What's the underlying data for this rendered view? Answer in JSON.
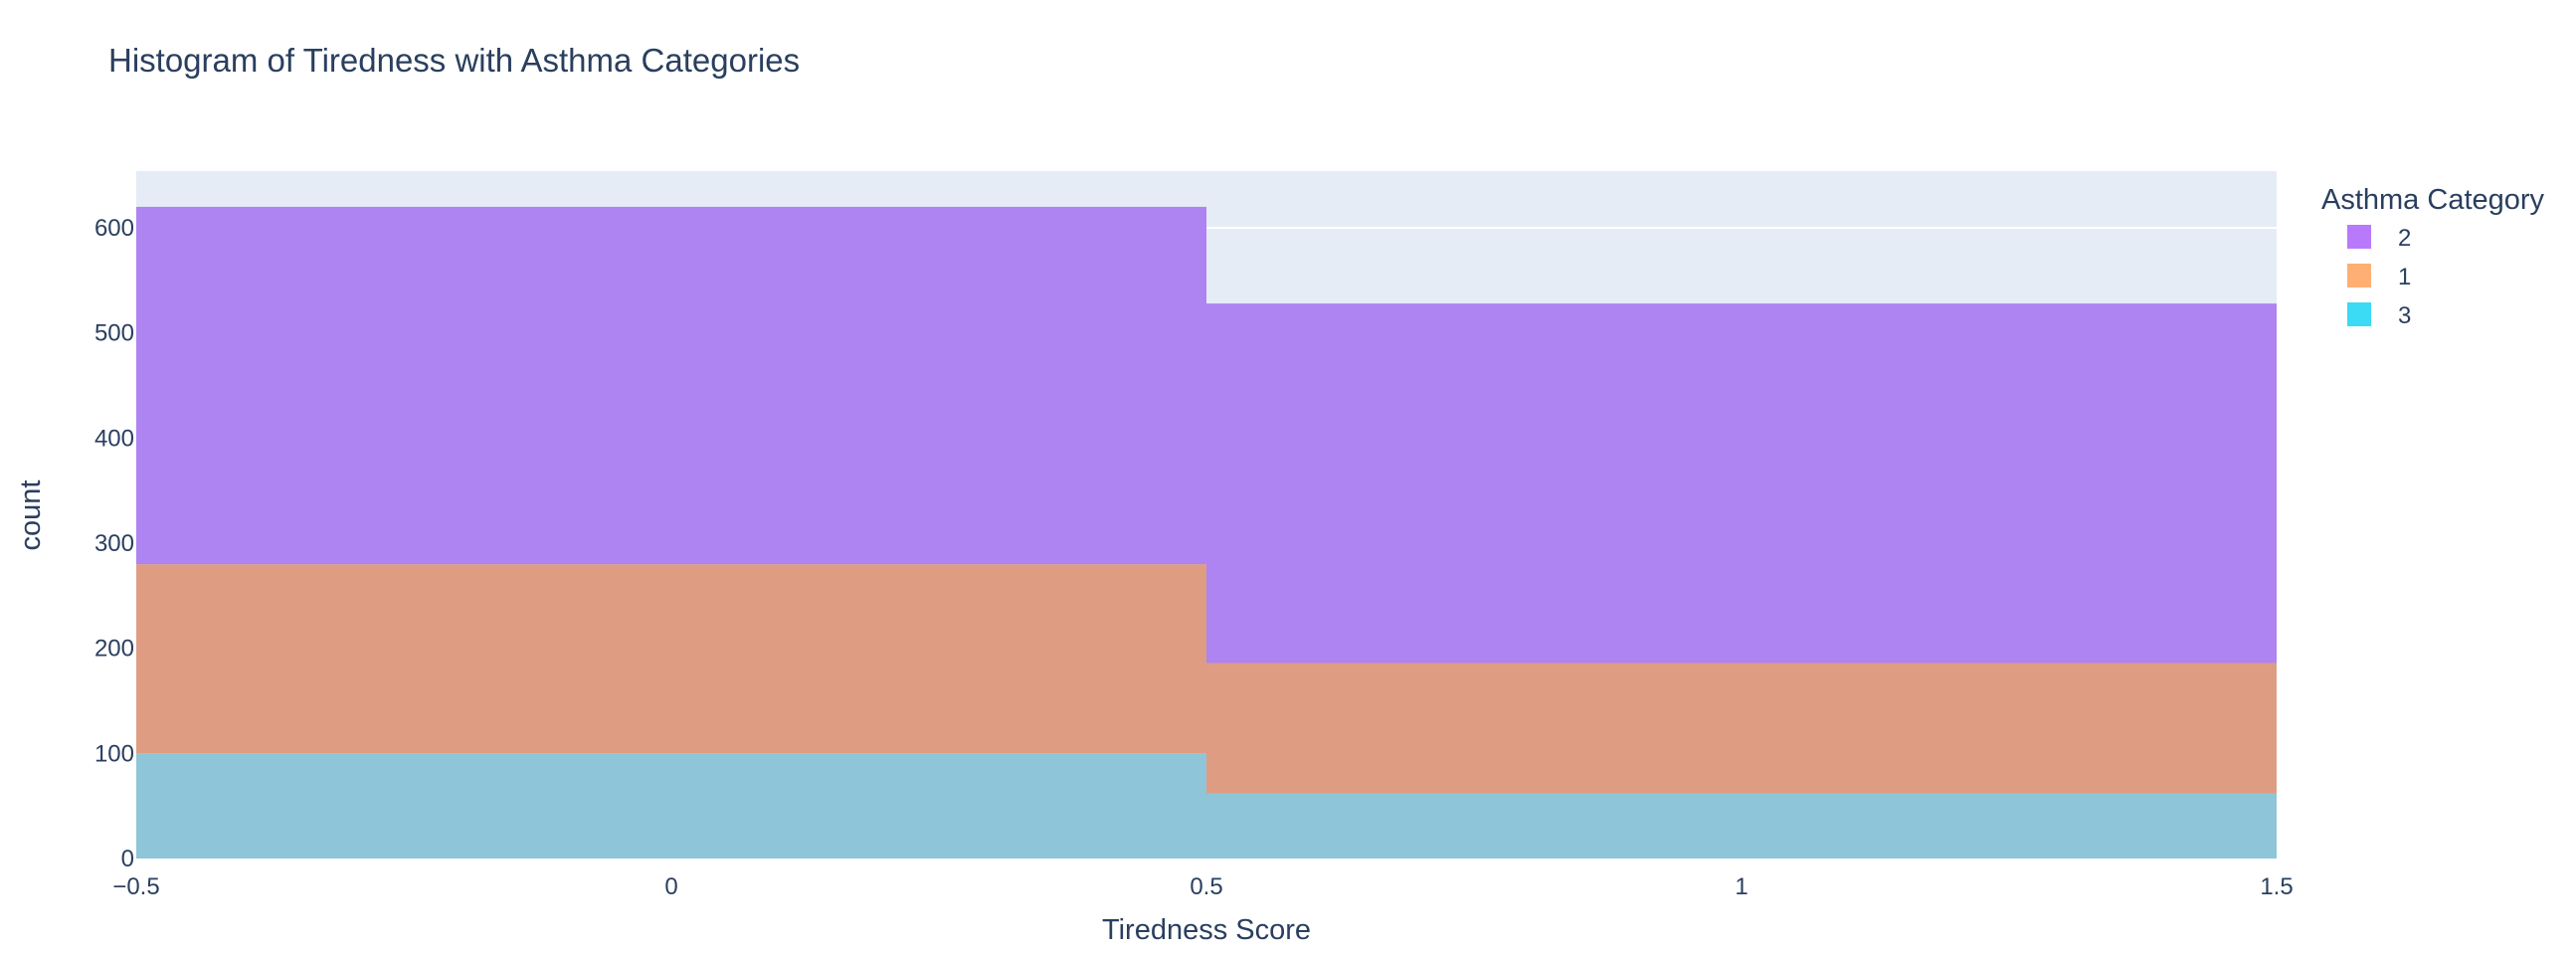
{
  "chart_data": {
    "type": "bar",
    "barmode": "stack",
    "title": "Histogram of Tiredness with Asthma Categories",
    "xlabel": "Tiredness Score",
    "ylabel": "count",
    "xlim": [
      -0.5,
      1.5
    ],
    "ylim": [
      0,
      654
    ],
    "bins": [
      [
        -0.5,
        0.5
      ],
      [
        0.5,
        1.5
      ]
    ],
    "x_ticks": [
      "−0.5",
      "0",
      "0.5",
      "1",
      "1.5"
    ],
    "x_tick_values": [
      -0.5,
      0,
      0.5,
      1,
      1.5
    ],
    "y_ticks": [
      "0",
      "100",
      "200",
      "300",
      "400",
      "500",
      "600"
    ],
    "y_tick_values": [
      0,
      100,
      200,
      300,
      400,
      500,
      600
    ],
    "grid": true,
    "legend_title": "Asthma Category",
    "legend_position": "right",
    "series": [
      {
        "name": "3",
        "values": [
          100,
          62
        ],
        "color": "#8ec5d8"
      },
      {
        "name": "1",
        "values": [
          180,
          124
        ],
        "color": "#de9d82"
      },
      {
        "name": "2",
        "values": [
          340,
          342
        ],
        "color": "#ad84f1"
      }
    ],
    "legend_order": [
      "2",
      "1",
      "3"
    ],
    "legend_colors": {
      "2": "#ab63fa",
      "1": "#ffa15a",
      "3": "#19d3f3"
    },
    "plot_background": "#e5ecf6"
  }
}
